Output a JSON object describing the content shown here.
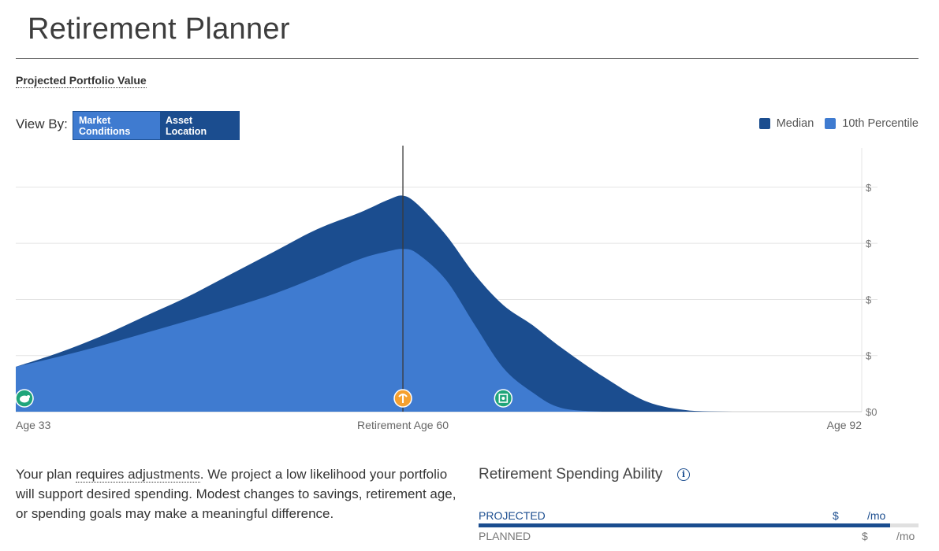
{
  "page": {
    "title": "Retirement Planner",
    "section_label": "Projected Portfolio Value"
  },
  "view_by": {
    "label": "View By:",
    "options": [
      "Market Conditions",
      "Asset Location"
    ],
    "selected": "Market Conditions"
  },
  "legend": [
    {
      "name": "Median",
      "color": "#1b4d8f"
    },
    {
      "name": "10th Percentile",
      "color": "#3f7bd0"
    }
  ],
  "chart_data": {
    "type": "area",
    "x": [
      33,
      36,
      39,
      42,
      45,
      48,
      51,
      54,
      57,
      59,
      60,
      61,
      63,
      65,
      67,
      69,
      71,
      74,
      77,
      80,
      83,
      86,
      89,
      92
    ],
    "series": [
      {
        "name": "Median",
        "color": "#1b4d8f",
        "values": [
          0.8,
          1.05,
          1.35,
          1.7,
          2.05,
          2.45,
          2.85,
          3.25,
          3.55,
          3.78,
          3.85,
          3.7,
          3.15,
          2.45,
          1.9,
          1.55,
          1.15,
          0.62,
          0.18,
          0.02,
          0,
          0,
          0,
          0
        ]
      },
      {
        "name": "10th Percentile",
        "color": "#3f7bd0",
        "values": [
          0.8,
          0.98,
          1.18,
          1.4,
          1.62,
          1.85,
          2.1,
          2.4,
          2.72,
          2.86,
          2.9,
          2.82,
          2.35,
          1.55,
          0.78,
          0.35,
          0.07,
          0,
          0,
          0,
          0,
          0,
          0,
          0
        ]
      }
    ],
    "x_tick_labels": [
      "Age 33",
      "Retirement Age 60",
      "Age 92"
    ],
    "y_tick_labels": [
      "$0",
      "$",
      "$",
      "$",
      "$"
    ],
    "ylim": [
      0,
      4.7
    ],
    "xlim": [
      33,
      92
    ],
    "retirement_age": 60,
    "markers": [
      {
        "icon": "piggy-bank-icon",
        "age": 33,
        "color": "#1fa57a"
      },
      {
        "icon": "palm-tree-icon",
        "age": 60,
        "color": "#f5a030"
      },
      {
        "icon": "safe-icon",
        "age": 67,
        "color": "#1fa57a"
      }
    ]
  },
  "summary": {
    "pre": "Your plan ",
    "dotted": "requires adjustments",
    "post": ". We project a low likelihood your portfolio will support desired spending. Modest changes to savings, retirement age, or spending goals may make a meaningful difference."
  },
  "spending": {
    "title": "Retirement Spending Ability",
    "rows": [
      {
        "label": "PROJECTED",
        "currency": "$",
        "unit": "/mo",
        "fill_fraction": 0.935
      },
      {
        "label": "PLANNED",
        "currency": "$",
        "unit": "/mo"
      }
    ]
  }
}
